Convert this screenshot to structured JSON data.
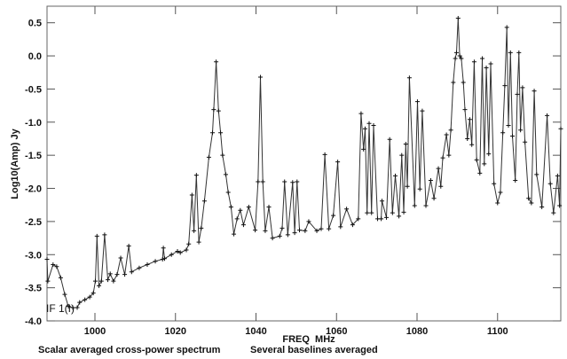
{
  "chart_data": {
    "type": "line",
    "title": "",
    "xlabel": "FREQ  MHz",
    "ylabel": "Log10(Amp) Jy",
    "annotation": "IF 1(I)",
    "caption_left": "Scalar averaged cross-power spectrum",
    "caption_right": "Several baselines averaged",
    "xlim": [
      988.1,
      1115.7
    ],
    "ylim": [
      -4.0,
      0.75
    ],
    "xticks": [
      1000,
      1020,
      1040,
      1060,
      1080,
      1100
    ],
    "xtick_labels": [
      "1000",
      "1020",
      "1040",
      "1060",
      "1080",
      "1100"
    ],
    "yticks": [
      0.5,
      0.0,
      -0.5,
      -1.0,
      -1.5,
      -2.0,
      -2.5,
      -3.0,
      -3.5,
      -4.0
    ],
    "ytick_labels": [
      "0.5",
      "0.0",
      "-0.5",
      "-1.0",
      "-1.5",
      "-2.0",
      "-2.5",
      "-3.0",
      "-3.5",
      "-4.0"
    ],
    "grid": false,
    "line_color": "#333333",
    "series": [
      {
        "name": "IF 1(I)",
        "x": [
          988.1,
          988.3,
          989.6,
          990.5,
          991.5,
          992.5,
          993.4,
          994.5,
          995.6,
          996.2,
          997.5,
          998.7,
          999.6,
          1000.1,
          1000.5,
          1001.0,
          1001.6,
          1002.4,
          1003.2,
          1003.8,
          1004.6,
          1005.5,
          1006.4,
          1007.4,
          1008.4,
          1009.1,
          1011,
          1013,
          1015,
          1016.8,
          1017.0,
          1017.3,
          1019,
          1020.5,
          1021.2,
          1022.7,
          1023.3,
          1024.1,
          1024.6,
          1025.2,
          1025.8,
          1026.4,
          1027.2,
          1028.3,
          1029.2,
          1029.5,
          1030.1,
          1030.7,
          1031.2,
          1031.7,
          1032.5,
          1033.1,
          1033.8,
          1034.5,
          1035.3,
          1036.1,
          1036.9,
          1038.2,
          1039.8,
          1040.5,
          1041.1,
          1041.7,
          1042.3,
          1043.2,
          1044.1,
          1045.9,
          1046.5,
          1047.1,
          1047.9,
          1049.1,
          1049.6,
          1050.2,
          1050.8,
          1052.2,
          1053.1,
          1055.1,
          1056.2,
          1057.1,
          1058.1,
          1059.2,
          1060.3,
          1061.0,
          1062.5,
          1064.0,
          1065.4,
          1066.1,
          1066.7,
          1067.1,
          1067.6,
          1068.1,
          1068.7,
          1069.2,
          1070.2,
          1071.1,
          1071.3,
          1072.4,
          1073.2,
          1073.9,
          1074.6,
          1075.5,
          1076.2,
          1076.7,
          1077.2,
          1077.6,
          1078.1,
          1079.4,
          1080.1,
          1080.7,
          1081.3,
          1082.2,
          1083.4,
          1084.2,
          1085.3,
          1085.9,
          1086.4,
          1087.3,
          1087.9,
          1088.4,
          1089.0,
          1089.5,
          1089.8,
          1090.2,
          1090.6,
          1091.0,
          1091.5,
          1091.9,
          1092.5,
          1093.1,
          1093.6,
          1094.2,
          1094.8,
          1095.6,
          1096.2,
          1096.7,
          1097.2,
          1097.8,
          1098.3,
          1099.1,
          1100.0,
          1100.7,
          1101.3,
          1101.8,
          1102.3,
          1102.7,
          1103.2,
          1103.7,
          1104.4,
          1104.9,
          1105.3,
          1105.7,
          1106.2,
          1106.8,
          1107.7,
          1108.4,
          1109.1,
          1109.7,
          1111.0,
          1112.3,
          1113.1,
          1113.9,
          1114.9,
          1115.4,
          1115.7
        ],
        "y": [
          -3.07,
          -3.4,
          -3.15,
          -3.18,
          -3.35,
          -3.6,
          -3.78,
          -3.8,
          -3.8,
          -3.72,
          -3.68,
          -3.64,
          -3.58,
          -3.4,
          -2.72,
          -3.47,
          -3.4,
          -2.7,
          -3.38,
          -3.29,
          -3.4,
          -3.3,
          -3.05,
          -3.3,
          -2.87,
          -3.26,
          -3.2,
          -3.15,
          -3.1,
          -3.07,
          -2.9,
          -3.06,
          -3.0,
          -2.95,
          -2.97,
          -2.93,
          -2.84,
          -2.1,
          -2.64,
          -1.8,
          -2.81,
          -2.6,
          -2.19,
          -1.53,
          -1.16,
          -0.81,
          -0.09,
          -0.83,
          -1.16,
          -1.5,
          -1.79,
          -2.06,
          -2.28,
          -2.69,
          -2.46,
          -2.33,
          -2.55,
          -2.28,
          -2.63,
          -1.9,
          -0.32,
          -1.9,
          -2.64,
          -2.28,
          -2.75,
          -2.72,
          -2.6,
          -1.9,
          -2.7,
          -1.91,
          -2.67,
          -1.9,
          -2.63,
          -2.64,
          -2.5,
          -2.64,
          -2.61,
          -1.49,
          -2.61,
          -2.41,
          -1.6,
          -2.58,
          -2.31,
          -2.55,
          -2.46,
          -0.87,
          -1.41,
          -1.1,
          -2.37,
          -1.02,
          -2.37,
          -1.05,
          -2.46,
          -2.46,
          -2.19,
          -2.44,
          -1.26,
          -2.37,
          -1.81,
          -2.42,
          -1.5,
          -2.36,
          -1.33,
          -1.97,
          -0.33,
          -2.26,
          -0.69,
          -2.01,
          -0.83,
          -2.26,
          -1.88,
          -2.15,
          -1.7,
          -1.97,
          -1.54,
          -1.19,
          -1.5,
          -1.12,
          -0.4,
          -0.04,
          0.05,
          0.57,
          0.0,
          -0.04,
          -0.4,
          -0.81,
          -1.25,
          -0.96,
          -1.34,
          -0.09,
          -1.57,
          -1.77,
          -0.04,
          -1.63,
          -0.18,
          -1.48,
          -0.12,
          -1.93,
          -2.22,
          -2.06,
          -1.16,
          -0.45,
          0.43,
          -1.05,
          0.05,
          -1.21,
          -1.88,
          -0.58,
          0.05,
          -1.12,
          -0.48,
          -1.3,
          -2.15,
          -2.22,
          -0.53,
          -1.79,
          -2.28,
          -0.9,
          -1.93,
          -2.37,
          -1.81,
          -2.26,
          -1.1
        ]
      }
    ]
  }
}
